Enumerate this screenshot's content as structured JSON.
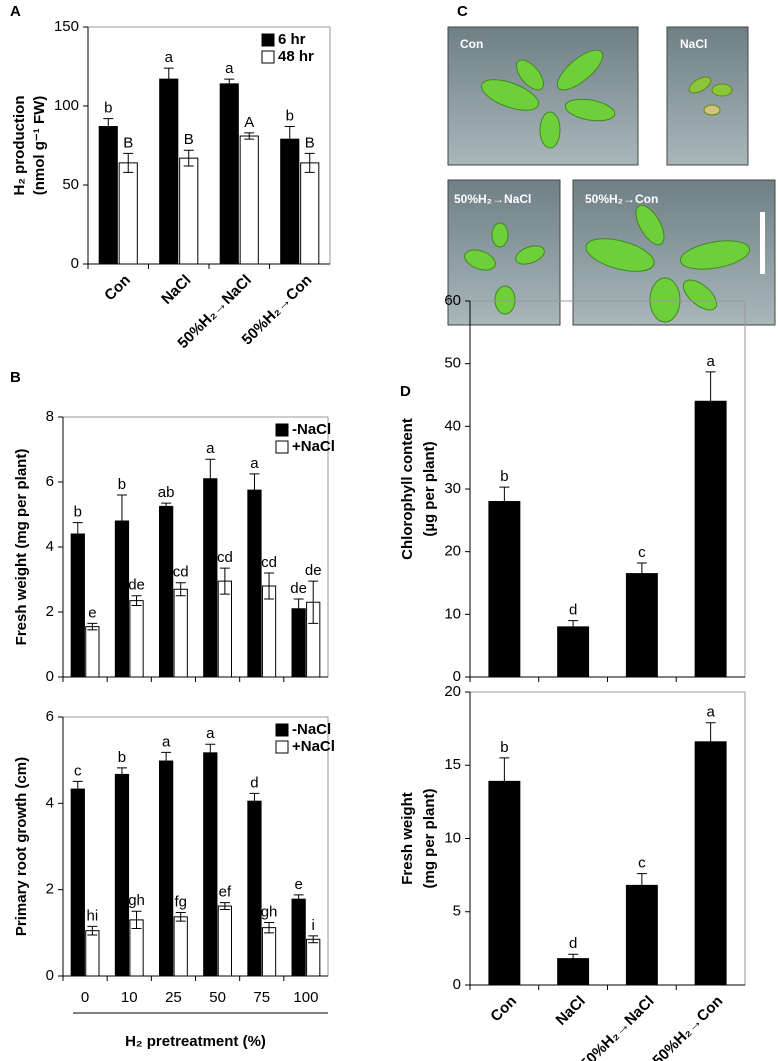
{
  "chart_data": [
    {
      "type": "bar",
      "panel_label": "A",
      "y_label": [
        "H₂ production",
        "(nmol g⁻¹ FW)"
      ],
      "categories": [
        "Con",
        "NaCl",
        "50%H₂→NaCl",
        "50%H₂→Con"
      ],
      "series": [
        {
          "name": "6 hr",
          "color": "#000000",
          "values": [
            87,
            117,
            114,
            79
          ],
          "errors": [
            5,
            7,
            3,
            8
          ],
          "letters": [
            "b",
            "a",
            "a",
            "b"
          ]
        },
        {
          "name": "48 hr",
          "color": "#ffffff",
          "values": [
            64,
            67,
            81,
            64
          ],
          "errors": [
            6,
            5,
            2,
            6
          ],
          "letters": [
            "B",
            "B",
            "A",
            "B"
          ]
        }
      ],
      "ylim": [
        0,
        150
      ],
      "yticks": [
        0,
        50,
        100,
        150
      ]
    },
    {
      "type": "bar",
      "panel_label": "B",
      "y_label": [
        "Fresh weight (mg per plant)"
      ],
      "categories": [
        null,
        null,
        null,
        null,
        null,
        null
      ],
      "series": [
        {
          "name": "-NaCl",
          "color": "#000000",
          "values": [
            4.4,
            4.8,
            5.25,
            6.1,
            5.75,
            2.1
          ],
          "errors": [
            0.35,
            0.8,
            0.1,
            0.6,
            0.5,
            0.3
          ],
          "letters": [
            "b",
            "b",
            "ab",
            "a",
            "a",
            "de"
          ]
        },
        {
          "name": "+NaCl",
          "color": "#ffffff",
          "values": [
            1.55,
            2.35,
            2.7,
            2.95,
            2.8,
            2.3
          ],
          "errors": [
            0.1,
            0.15,
            0.2,
            0.4,
            0.4,
            0.65
          ],
          "letters": [
            "e",
            "de",
            "cd",
            "cd",
            "cd",
            "de"
          ]
        }
      ],
      "ylim": [
        0,
        8
      ],
      "yticks": [
        0,
        2,
        4,
        6,
        8
      ]
    },
    {
      "type": "bar",
      "y_label": [
        "Primary root growth (cm)"
      ],
      "x_label": "H₂ pretreatment (%)",
      "categories": [
        "0",
        "10",
        "25",
        "50",
        "75",
        "100"
      ],
      "series": [
        {
          "name": "-NaCl",
          "color": "#000000",
          "values": [
            4.33,
            4.67,
            4.98,
            5.17,
            4.05,
            1.78
          ],
          "errors": [
            0.18,
            0.15,
            0.2,
            0.2,
            0.18,
            0.1
          ],
          "letters": [
            "c",
            "b",
            "a",
            "a",
            "d",
            "e"
          ]
        },
        {
          "name": "+NaCl",
          "color": "#ffffff",
          "values": [
            1.05,
            1.3,
            1.37,
            1.62,
            1.12,
            0.85
          ],
          "errors": [
            0.1,
            0.2,
            0.1,
            0.08,
            0.12,
            0.08
          ],
          "letters": [
            "hi",
            "gh",
            "fg",
            "ef",
            "gh",
            "i"
          ]
        }
      ],
      "ylim": [
        0,
        6
      ],
      "yticks": [
        0,
        2,
        4,
        6
      ]
    },
    {
      "type": "bar",
      "panel_label": "D",
      "y_label": [
        "Chlorophyll content",
        "(µg per plant)"
      ],
      "categories": [
        null,
        null,
        null,
        null
      ],
      "series": [
        {
          "color": "#000000",
          "values": [
            28,
            8,
            16.5,
            44
          ],
          "errors": [
            2.3,
            1,
            1.7,
            4.7
          ],
          "letters": [
            "b",
            "d",
            "c",
            "a"
          ]
        }
      ],
      "ylim": [
        0,
        60
      ],
      "yticks": [
        0,
        10,
        20,
        30,
        40,
        50,
        60
      ]
    },
    {
      "type": "bar",
      "y_label": [
        "Fresh weight",
        "(mg per plant)"
      ],
      "categories": [
        "Con",
        "NaCl",
        "50%H₂→NaCl",
        "50%H₂→Con"
      ],
      "series": [
        {
          "color": "#000000",
          "values": [
            13.9,
            1.8,
            6.8,
            16.6
          ],
          "errors": [
            1.6,
            0.3,
            0.8,
            1.3
          ],
          "letters": [
            "b",
            "d",
            "c",
            "a"
          ]
        }
      ],
      "ylim": [
        0,
        20
      ],
      "yticks": [
        0,
        5,
        10,
        15,
        20
      ]
    }
  ],
  "photos": {
    "panel_label": "C",
    "labels": [
      "Con",
      "NaCl",
      "50%H₂→NaCl",
      "50%H₂→Con"
    ]
  }
}
